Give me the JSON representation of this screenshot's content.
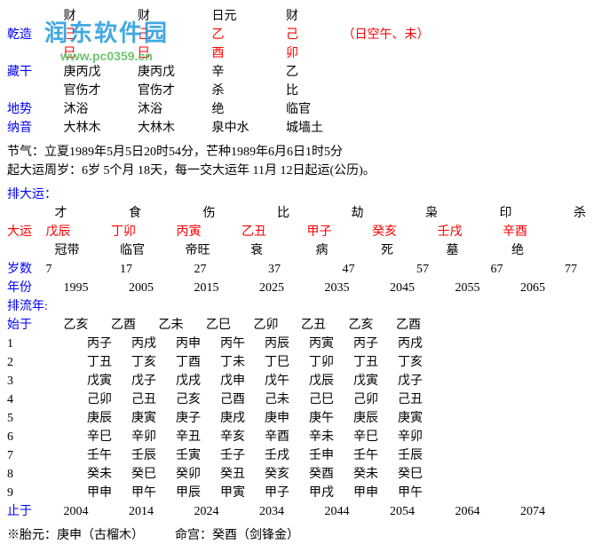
{
  "watermark": {
    "main": "润东软件园",
    "sub": "www.pc0359.cn"
  },
  "pillars": {
    "rowlabels": [
      "乾造",
      "",
      "藏干",
      "",
      "地势",
      "纳音"
    ],
    "headers": [
      "财",
      "财",
      "日元",
      "财"
    ],
    "stems": [
      "己",
      "己",
      "乙",
      "己"
    ],
    "branches": [
      "巳",
      "巳",
      "酉",
      "卯"
    ],
    "note": "（日空午、未）",
    "hidden": [
      "庚丙戊",
      "庚丙戊",
      "辛",
      "乙"
    ],
    "hidden2": [
      "官伤才",
      "官伤才",
      "杀",
      "比"
    ],
    "dishi": [
      "沐浴",
      "沐浴",
      "绝",
      "临官"
    ],
    "nayin": [
      "大林木",
      "大林木",
      "泉中水",
      "城墙土"
    ]
  },
  "jieqi": "节气：立夏1989年5月5日20时54分，芒种1989年6月6日1时5分",
  "qiyun": "起大运周岁：6岁 5个月 18天，每一交大运年 11月 12日起运(公历)。",
  "dayun": {
    "title": "排大运：",
    "gods": [
      "才",
      "食",
      "伤",
      "比",
      "劫",
      "枭",
      "印",
      "杀"
    ],
    "label": "大运",
    "pillars": [
      "戊辰",
      "丁卯",
      "丙寅",
      "乙丑",
      "甲子",
      "癸亥",
      "壬戌",
      "辛酉"
    ],
    "status": [
      "冠带",
      "临官",
      "帝旺",
      "衰",
      "病",
      "死",
      "墓",
      "绝"
    ],
    "agelabel": "岁数",
    "ages": [
      "7",
      "17",
      "27",
      "37",
      "47",
      "57",
      "67",
      "77"
    ],
    "yearlabel": "年份",
    "years": [
      "1995",
      "2005",
      "2015",
      "2025",
      "2035",
      "2045",
      "2055",
      "2065"
    ]
  },
  "liunian": {
    "title": "排流年:",
    "startlabel": "始于",
    "startrow": [
      "乙亥",
      "乙酉",
      "乙未",
      "乙巳",
      "乙卯",
      "乙丑",
      "乙亥",
      "乙酉"
    ],
    "rows": [
      {
        "n": "1",
        "cells": [
          "丙子",
          "丙戌",
          "丙申",
          "丙午",
          "丙辰",
          "丙寅",
          "丙子",
          "丙戌"
        ]
      },
      {
        "n": "2",
        "cells": [
          "丁丑",
          "丁亥",
          "丁酉",
          "丁未",
          "丁巳",
          "丁卯",
          "丁丑",
          "丁亥"
        ]
      },
      {
        "n": "3",
        "cells": [
          "戊寅",
          "戊子",
          "戊戌",
          "戊申",
          "戊午",
          "戊辰",
          "戊寅",
          "戊子"
        ]
      },
      {
        "n": "4",
        "cells": [
          "己卯",
          "己丑",
          "己亥",
          "己酉",
          "己未",
          "己巳",
          "己卯",
          "己丑"
        ]
      },
      {
        "n": "5",
        "cells": [
          "庚辰",
          "庚寅",
          "庚子",
          "庚戌",
          "庚申",
          "庚午",
          "庚辰",
          "庚寅"
        ]
      },
      {
        "n": "6",
        "cells": [
          "辛巳",
          "辛卯",
          "辛丑",
          "辛亥",
          "辛酉",
          "辛未",
          "辛巳",
          "辛卯"
        ]
      },
      {
        "n": "7",
        "cells": [
          "壬午",
          "壬辰",
          "壬寅",
          "壬子",
          "壬戌",
          "壬申",
          "壬午",
          "壬辰"
        ]
      },
      {
        "n": "8",
        "cells": [
          "癸未",
          "癸巳",
          "癸卯",
          "癸丑",
          "癸亥",
          "癸酉",
          "癸未",
          "癸巳"
        ]
      },
      {
        "n": "9",
        "cells": [
          "甲申",
          "甲午",
          "甲辰",
          "甲寅",
          "甲子",
          "甲戌",
          "甲申",
          "甲午"
        ]
      }
    ],
    "endlabel": "止于",
    "endrow": [
      "2004",
      "2014",
      "2024",
      "2034",
      "2044",
      "2054",
      "2064",
      "2074"
    ]
  },
  "footer": "※胎元：庚申（古榴木）　　　命宫：癸酉（剑锋金）"
}
